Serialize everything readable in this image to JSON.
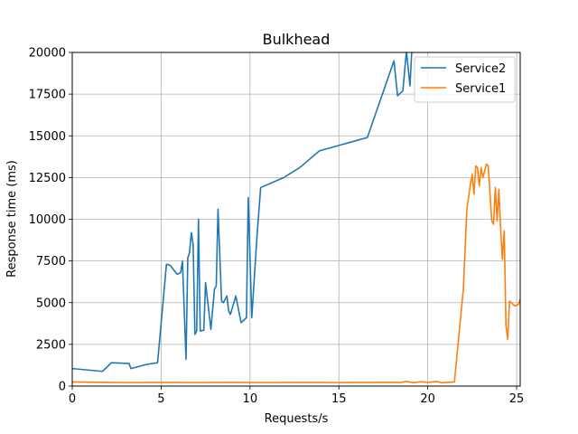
{
  "chart_data": {
    "type": "line",
    "title": "Bulkhead",
    "xlabel": "Requests/s",
    "ylabel": "Response time (ms)",
    "xlim": [
      0,
      25.2
    ],
    "ylim": [
      0,
      20000
    ],
    "xticks": [
      0,
      5,
      10,
      15,
      20,
      25
    ],
    "yticks": [
      0,
      2500,
      5000,
      7500,
      10000,
      12500,
      15000,
      17500,
      20000
    ],
    "xtick_labels": [
      "0",
      "5",
      "10",
      "15",
      "20",
      "25"
    ],
    "ytick_labels": [
      "0",
      "2500",
      "5000",
      "7500",
      "10000",
      "12500",
      "15000",
      "17500",
      "20000"
    ],
    "grid": true,
    "legend_position": "top-right",
    "series": [
      {
        "name": "Service2",
        "color": "#1f77b4",
        "points": [
          [
            0,
            1050
          ],
          [
            1.7,
            880
          ],
          [
            2.2,
            1400
          ],
          [
            3.2,
            1350
          ],
          [
            3.3,
            1050
          ],
          [
            4.2,
            1300
          ],
          [
            4.8,
            1400
          ],
          [
            5.3,
            7300
          ],
          [
            5.5,
            7250
          ],
          [
            5.9,
            6700
          ],
          [
            6.1,
            6800
          ],
          [
            6.2,
            7500
          ],
          [
            6.4,
            1600
          ],
          [
            6.5,
            7700
          ],
          [
            6.6,
            8000
          ],
          [
            6.7,
            9200
          ],
          [
            6.8,
            8500
          ],
          [
            6.9,
            3100
          ],
          [
            7.0,
            3300
          ],
          [
            7.1,
            10000
          ],
          [
            7.2,
            3300
          ],
          [
            7.4,
            3350
          ],
          [
            7.5,
            6200
          ],
          [
            7.8,
            3400
          ],
          [
            8.0,
            5800
          ],
          [
            8.1,
            6000
          ],
          [
            8.2,
            10600
          ],
          [
            8.4,
            5100
          ],
          [
            8.5,
            5000
          ],
          [
            8.7,
            5400
          ],
          [
            8.8,
            4500
          ],
          [
            8.9,
            4300
          ],
          [
            9.2,
            5400
          ],
          [
            9.5,
            3800
          ],
          [
            9.8,
            4100
          ],
          [
            9.9,
            11300
          ],
          [
            10.0,
            7700
          ],
          [
            10.1,
            4100
          ],
          [
            10.4,
            9100
          ],
          [
            10.6,
            11900
          ],
          [
            11.9,
            12500
          ],
          [
            12.8,
            13100
          ],
          [
            13.9,
            14100
          ],
          [
            16.6,
            14900
          ],
          [
            18.1,
            19500
          ],
          [
            18.3,
            17400
          ],
          [
            18.6,
            17700
          ],
          [
            18.8,
            20100
          ],
          [
            19.0,
            18000
          ],
          [
            19.1,
            20100
          ]
        ]
      },
      {
        "name": "Service1",
        "color": "#ff7f0e",
        "points": [
          [
            0,
            250
          ],
          [
            2.0,
            220
          ],
          [
            3.5,
            210
          ],
          [
            5.0,
            220
          ],
          [
            7.0,
            210
          ],
          [
            9.0,
            220
          ],
          [
            11.0,
            210
          ],
          [
            13.0,
            220
          ],
          [
            15.0,
            210
          ],
          [
            17.0,
            220
          ],
          [
            18.5,
            220
          ],
          [
            18.8,
            280
          ],
          [
            19.2,
            200
          ],
          [
            19.6,
            260
          ],
          [
            20.0,
            220
          ],
          [
            20.5,
            280
          ],
          [
            20.8,
            200
          ],
          [
            21.5,
            250
          ],
          [
            22.0,
            5800
          ],
          [
            22.2,
            10600
          ],
          [
            22.4,
            12100
          ],
          [
            22.5,
            12700
          ],
          [
            22.6,
            11500
          ],
          [
            22.7,
            13200
          ],
          [
            22.8,
            13100
          ],
          [
            22.9,
            12000
          ],
          [
            23.0,
            13100
          ],
          [
            23.1,
            12500
          ],
          [
            23.3,
            13300
          ],
          [
            23.4,
            13200
          ],
          [
            23.6,
            9900
          ],
          [
            23.7,
            9700
          ],
          [
            23.8,
            11900
          ],
          [
            23.9,
            9900
          ],
          [
            24.0,
            11800
          ],
          [
            24.1,
            9400
          ],
          [
            24.2,
            7600
          ],
          [
            24.3,
            9300
          ],
          [
            24.4,
            3600
          ],
          [
            24.5,
            2800
          ],
          [
            24.6,
            5100
          ],
          [
            24.7,
            5000
          ],
          [
            24.9,
            4800
          ],
          [
            25.1,
            4900
          ],
          [
            25.2,
            5200
          ]
        ]
      }
    ]
  }
}
